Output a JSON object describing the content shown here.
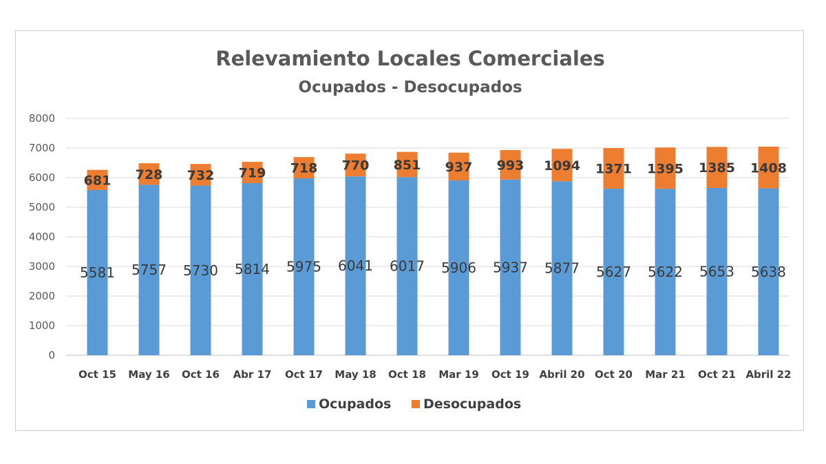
{
  "chart_data": {
    "type": "bar",
    "stacked": true,
    "title": "Relevamiento Locales Comerciales",
    "subtitle": "Ocupados - Desocupados",
    "xlabel": "",
    "ylabel": "",
    "ylim": [
      0,
      8000
    ],
    "yticks": [
      0,
      1000,
      2000,
      3000,
      4000,
      5000,
      6000,
      7000,
      8000
    ],
    "grid": true,
    "legend_position": "bottom",
    "categories": [
      "Oct 15",
      "May 16",
      "Oct 16",
      "Abr 17",
      "Oct 17",
      "May 18",
      "Oct 18",
      "Mar 19",
      "Oct 19",
      "Abril 20",
      "Oct 20",
      "Mar 21",
      "Oct 21",
      "Abril 22"
    ],
    "series": [
      {
        "name": "Ocupados",
        "color": "#5b9bd5",
        "values": [
          5581,
          5757,
          5730,
          5814,
          5975,
          6041,
          6017,
          5906,
          5937,
          5877,
          5627,
          5622,
          5653,
          5638
        ]
      },
      {
        "name": "Desocupados",
        "color": "#ed7d31",
        "values": [
          681,
          728,
          732,
          719,
          718,
          770,
          851,
          937,
          993,
          1094,
          1371,
          1395,
          1385,
          1408
        ]
      }
    ]
  }
}
